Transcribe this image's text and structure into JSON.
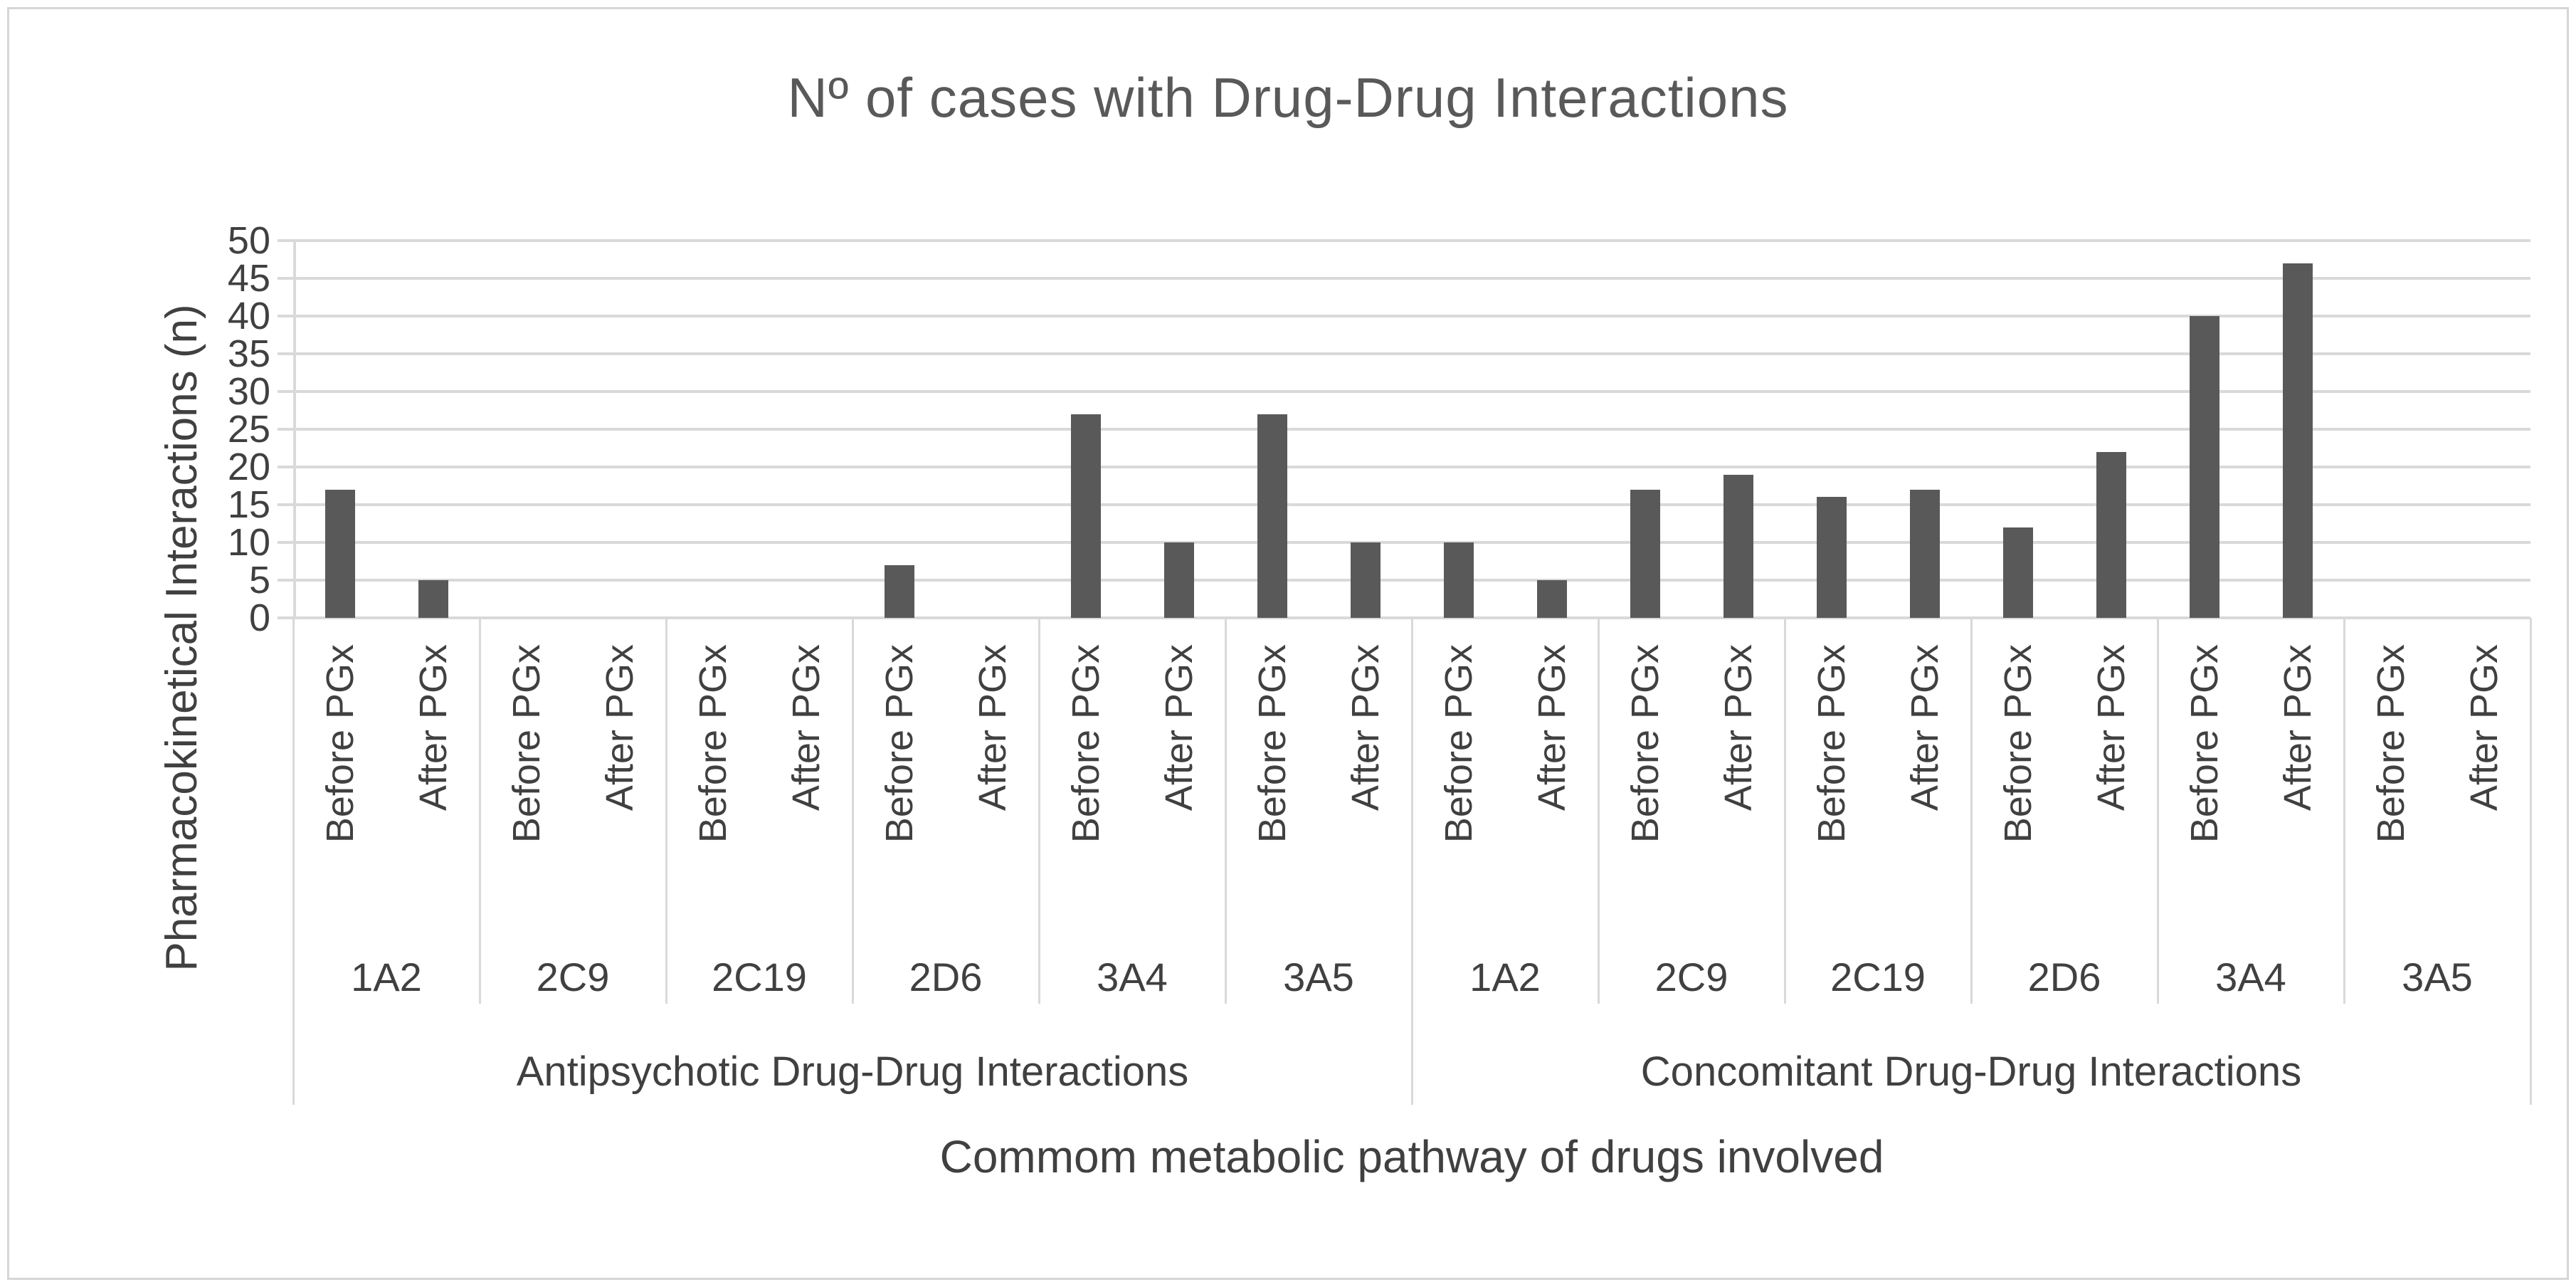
{
  "chart_data": {
    "type": "bar",
    "title": "Nº of cases with Drug-Drug Interactions",
    "ylabel": "Pharmacokinetical Interactions (n)",
    "xlabel": "Commom metabolic pathway of drugs involved",
    "ylim": [
      0,
      50
    ],
    "yticks": [
      0,
      5,
      10,
      15,
      20,
      25,
      30,
      35,
      40,
      45,
      50
    ],
    "grid": true,
    "legend": "none",
    "series_labels": [
      "Before PGx",
      "After PGx"
    ],
    "groups": [
      {
        "label": "Antipsychotic Drug-Drug Interactions",
        "categories": [
          {
            "pathway": "1A2",
            "before": 17,
            "after": 5
          },
          {
            "pathway": "2C9",
            "before": 0,
            "after": 0
          },
          {
            "pathway": "2C19",
            "before": 0,
            "after": 0
          },
          {
            "pathway": "2D6",
            "before": 7,
            "after": 0
          },
          {
            "pathway": "3A4",
            "before": 27,
            "after": 10
          },
          {
            "pathway": "3A5",
            "before": 27,
            "after": 10
          }
        ]
      },
      {
        "label": "Concomitant Drug-Drug Interactions",
        "categories": [
          {
            "pathway": "1A2",
            "before": 10,
            "after": 5
          },
          {
            "pathway": "2C9",
            "before": 17,
            "after": 19
          },
          {
            "pathway": "2C19",
            "before": 16,
            "after": 17
          },
          {
            "pathway": "2D6",
            "before": 12,
            "after": 22
          },
          {
            "pathway": "3A4",
            "before": 40,
            "after": 47
          },
          {
            "pathway": "3A5",
            "before": 0,
            "after": 0
          }
        ]
      }
    ],
    "colors": {
      "bar": "#595959",
      "gridline": "#d9d9d9",
      "axis": "#d9d9d9",
      "text": "#404040",
      "frame_border": "#d6d6d6",
      "background": "#ffffff"
    }
  }
}
